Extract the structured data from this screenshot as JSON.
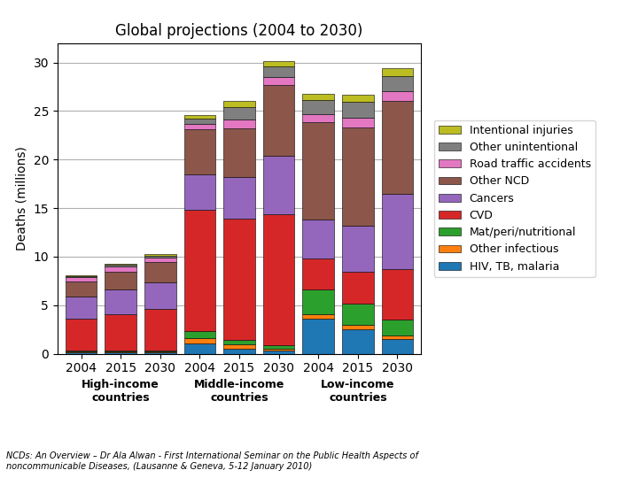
{
  "chart_data": {
    "type": "bar",
    "stacked": true,
    "title": "Global projections (2004 to 2030)",
    "ylabel": "Deaths (millions)",
    "categories": [
      "2004",
      "2015",
      "2030",
      "2004",
      "2015",
      "2030",
      "2004",
      "2015",
      "2030"
    ],
    "group_labels": [
      "High-income\ncountries",
      "Middle-income\ncountries",
      "Low-income\ncountries"
    ],
    "series": [
      {
        "name": "HIV, TB, malaria",
        "values": [
          0.15,
          0.15,
          0.15,
          1.1,
          0.55,
          0.3,
          3.6,
          2.55,
          1.5
        ]
      },
      {
        "name": "Other infectious",
        "values": [
          0.1,
          0.1,
          0.1,
          0.55,
          0.4,
          0.25,
          0.5,
          0.4,
          0.35
        ]
      },
      {
        "name": "Mat/peri/nutritional",
        "values": [
          0.1,
          0.1,
          0.1,
          0.65,
          0.5,
          0.3,
          2.55,
          2.25,
          1.7
        ]
      },
      {
        "name": "CVD",
        "values": [
          3.3,
          3.75,
          4.25,
          12.5,
          12.5,
          13.5,
          3.2,
          3.2,
          5.2
        ]
      },
      {
        "name": "Cancers",
        "values": [
          2.25,
          2.5,
          2.75,
          3.7,
          4.25,
          6.0,
          4.0,
          4.8,
          7.7
        ]
      },
      {
        "name": "Other NCD",
        "values": [
          1.55,
          1.8,
          2.1,
          4.6,
          5.0,
          7.3,
          10.0,
          10.1,
          9.6
        ]
      },
      {
        "name": "Road traffic accidents",
        "values": [
          0.4,
          0.55,
          0.45,
          0.55,
          0.9,
          0.85,
          0.8,
          1.0,
          1.0
        ]
      },
      {
        "name": "Other unintentional",
        "values": [
          0.15,
          0.2,
          0.2,
          0.6,
          1.3,
          1.1,
          1.5,
          1.65,
          1.55
        ]
      },
      {
        "name": "Intentional injuries",
        "values": [
          0.1,
          0.15,
          0.15,
          0.3,
          0.65,
          0.5,
          0.65,
          0.7,
          0.8
        ]
      }
    ],
    "ylim": [
      0,
      32
    ],
    "yticks": [
      0,
      5,
      10,
      15,
      20,
      25,
      30
    ],
    "grid": true,
    "legend": "center left",
    "annotations": [
      "NCDs: An Overview – Dr Ala Alwan - First International Seminar on the Public Health Aspects of\nnoncommunicable Diseases, (Lausanne & Geneva, 5-12 January 2010)"
    ]
  }
}
